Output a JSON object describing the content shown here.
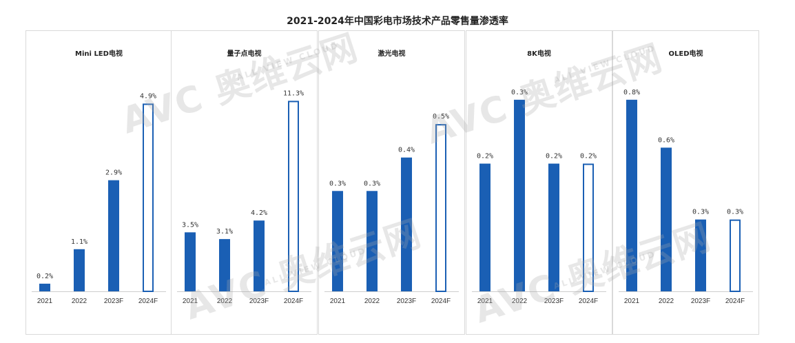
{
  "title": "2021-2024年中国彩电市场技术产品零售量渗透率",
  "watermark": {
    "brand": "AVC",
    "cn": "奥维云网",
    "en": "ALL VIEW CLOUD"
  },
  "colors": {
    "bar": "#1a5fb4",
    "forecast_outline": "#1a5fb4",
    "axis": "#cccccc"
  },
  "chart_data": [
    {
      "type": "bar",
      "title": "Mini LED电视",
      "categories": [
        "2021",
        "2022",
        "2023F",
        "2024F"
      ],
      "values": [
        0.2,
        1.1,
        2.9,
        4.9
      ],
      "labels": [
        "0.2%",
        "1.1%",
        "2.9%",
        "4.9%"
      ],
      "forecast": [
        false,
        false,
        false,
        true
      ],
      "ylim": [
        0,
        5.5
      ]
    },
    {
      "type": "bar",
      "title": "量子点电视",
      "categories": [
        "2021",
        "2022",
        "2023F",
        "2024F"
      ],
      "values": [
        3.5,
        3.1,
        4.2,
        11.3
      ],
      "labels": [
        "3.5%",
        "3.1%",
        "4.2%",
        "11.3%"
      ],
      "forecast": [
        false,
        false,
        false,
        true
      ],
      "ylim": [
        0,
        12.5
      ]
    },
    {
      "type": "bar",
      "title": "激光电视",
      "categories": [
        "2021",
        "2022",
        "2023F",
        "2024F"
      ],
      "values": [
        0.3,
        0.3,
        0.4,
        0.5
      ],
      "labels": [
        "0.3%",
        "0.3%",
        "0.4%",
        "0.5%"
      ],
      "forecast": [
        false,
        false,
        false,
        true
      ],
      "ylim": [
        0,
        0.63
      ]
    },
    {
      "type": "bar",
      "title": "8K电视",
      "categories": [
        "2021",
        "2022",
        "2023F",
        "2024F"
      ],
      "values": [
        0.2,
        0.3,
        0.2,
        0.2
      ],
      "labels": [
        "0.2%",
        "0.3%",
        "0.2%",
        "0.2%"
      ],
      "forecast": [
        false,
        false,
        false,
        true
      ],
      "ylim": [
        0,
        0.33
      ]
    },
    {
      "type": "bar",
      "title": "OLED电视",
      "categories": [
        "2021",
        "2022",
        "2023F",
        "2024F"
      ],
      "values": [
        0.8,
        0.6,
        0.3,
        0.3
      ],
      "labels": [
        "0.8%",
        "0.6%",
        "0.3%",
        "0.3%"
      ],
      "forecast": [
        false,
        false,
        false,
        true
      ],
      "ylim": [
        0,
        0.88
      ]
    }
  ]
}
